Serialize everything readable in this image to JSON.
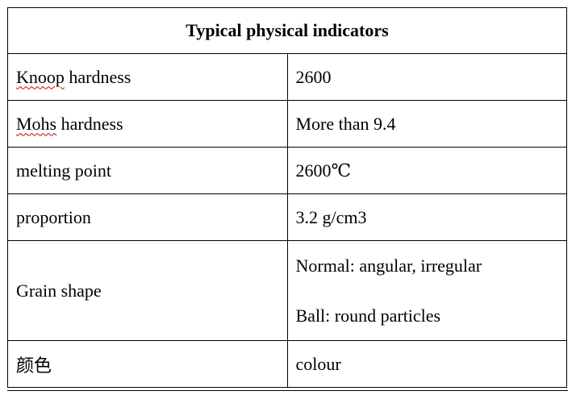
{
  "table": {
    "title": "Typical physical indicators",
    "rows": [
      {
        "first_word": "Knoop",
        "rest": " hardness",
        "value": "2600"
      },
      {
        "first_word": "Mohs",
        "rest": " hardness",
        "value": "More than 9.4"
      },
      {
        "label": "melting point",
        "value": "2600℃"
      },
      {
        "label": "proportion",
        "value": "3.2 g/cm3"
      },
      {
        "label": "Grain shape",
        "value_lines": [
          "Normal: angular, irregular",
          "Ball: round particles"
        ]
      },
      {
        "label": "颜色",
        "value": "colour"
      }
    ]
  }
}
